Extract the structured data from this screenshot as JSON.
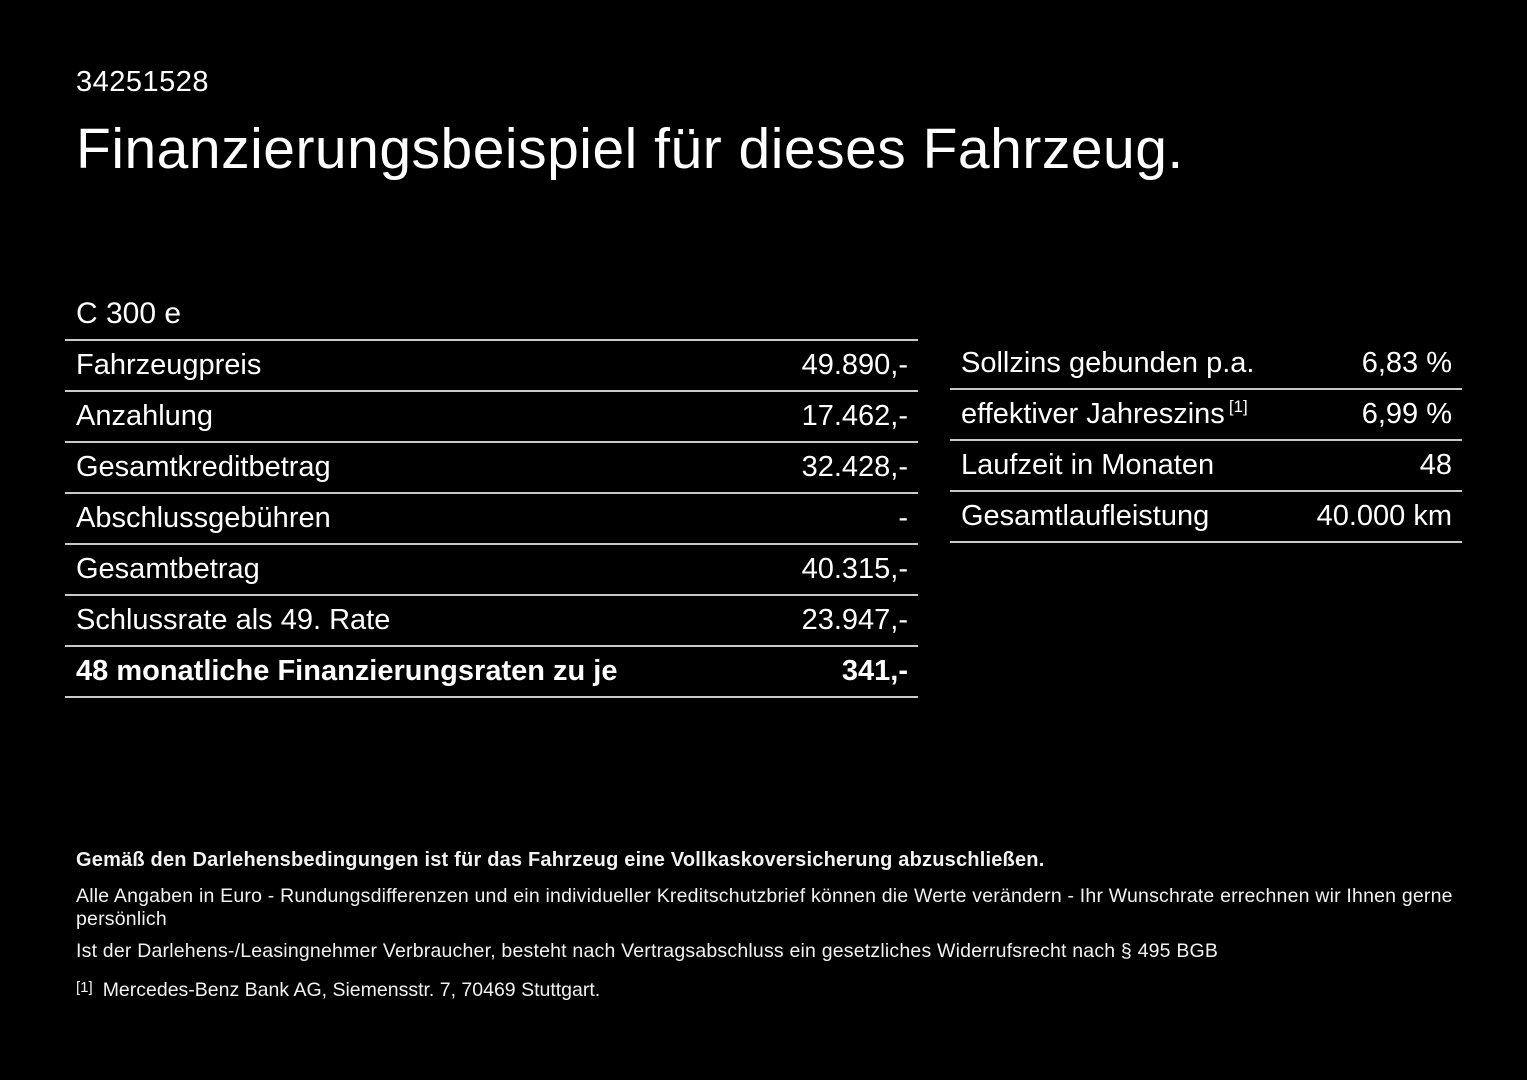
{
  "page": {
    "doc_id": "34251528",
    "title": "Finanzierungsbeispiel für dieses Fahrzeug.",
    "model": "C 300 e"
  },
  "colors": {
    "background": "#000000",
    "text": "#ffffff",
    "divider": "#c9c9c9"
  },
  "left_table": {
    "rows": [
      {
        "label": "Fahrzeugpreis",
        "value": "49.890,-"
      },
      {
        "label": "Anzahlung",
        "value": "17.462,-"
      },
      {
        "label": "Gesamtkreditbetrag",
        "value": "32.428,-"
      },
      {
        "label": "Abschlussgebühren",
        "value": "-"
      },
      {
        "label": "Gesamtbetrag",
        "value": "40.315,-"
      },
      {
        "label": "Schlussrate als 49. Rate",
        "value": "23.947,-"
      },
      {
        "label": "48 monatliche Finanzierungsraten zu je",
        "value": "341,-"
      }
    ]
  },
  "right_table": {
    "rows": [
      {
        "label": "Sollzins gebunden p.a.",
        "superscript": "",
        "value": "6,83 %"
      },
      {
        "label": "effektiver Jahreszins",
        "superscript": "[1]",
        "value": "6,99 %"
      },
      {
        "label": "Laufzeit in Monaten",
        "superscript": "",
        "value": "48"
      },
      {
        "label": "Gesamtlaufleistung",
        "superscript": "",
        "value": "40.000 km"
      }
    ]
  },
  "legal": {
    "line1": "Gemäß den Darlehensbedingungen ist für das Fahrzeug eine Vollkaskoversicherung abzuschließen.",
    "line2": "Alle Angaben in Euro - Rundungsdifferenzen und ein individueller Kreditschutzbrief können die Werte verändern - Ihr Wunschrate errechnen wir Ihnen gerne persönlich",
    "line3": "Ist der Darlehens-/Leasingnehmer Verbraucher, besteht nach Vertragsabschluss ein gesetzliches Widerrufsrecht nach § 495 BGB",
    "footnote_marker": "[1]",
    "footnote_text": "Mercedes-Benz Bank AG, Siemensstr. 7, 70469 Stuttgart."
  }
}
